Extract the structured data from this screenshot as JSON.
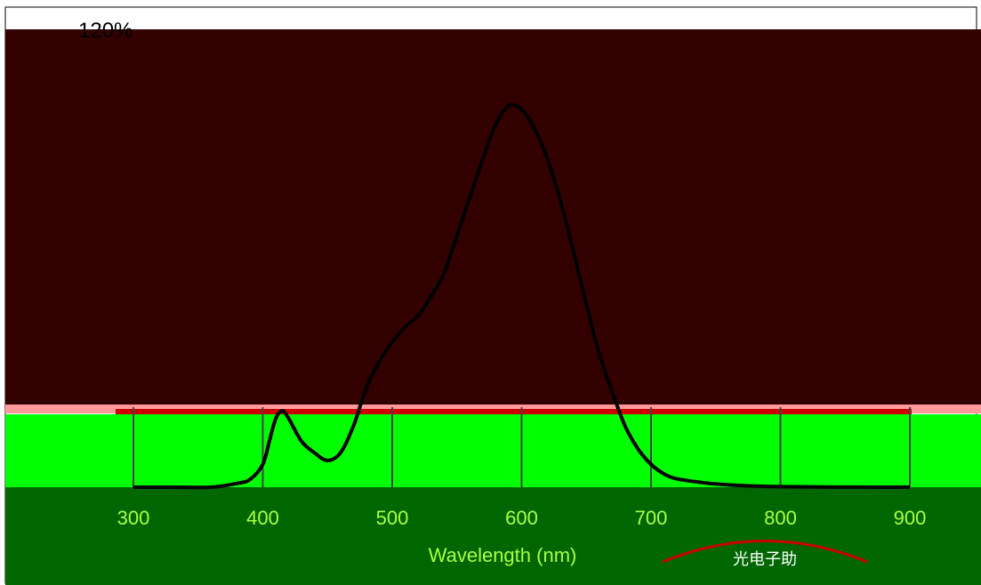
{
  "colors": {
    "plot_bg": "#330000",
    "band_green": "#00ff00",
    "band_dark_green": "#006600",
    "curve": "#000000",
    "strip_red": "#cc0000",
    "strip_pink": "#ff9999"
  },
  "chart_data": {
    "type": "line",
    "title": "",
    "xlabel": "Wavelength (nm)",
    "ylabel": "",
    "x_ticks": [
      "300",
      "400",
      "500",
      "600",
      "700",
      "800",
      "900"
    ],
    "y_ticks_visible": [
      "120%"
    ],
    "xlim": [
      300,
      900
    ],
    "ylim": [
      0,
      120
    ],
    "grid": true,
    "series": [
      {
        "x": [
          300,
          330,
          360,
          380,
          390,
          400,
          405,
          410,
          415,
          420,
          430,
          440,
          450,
          460,
          470,
          480,
          490,
          500,
          510,
          520,
          530,
          540,
          550,
          560,
          570,
          580,
          590,
          600,
          610,
          620,
          630,
          640,
          650,
          660,
          670,
          680,
          690,
          700,
          710,
          720,
          740,
          760,
          780,
          800,
          830,
          860,
          900
        ],
        "y": [
          0,
          0,
          0,
          1,
          2,
          6,
          12,
          18,
          20,
          18,
          12,
          9,
          7,
          9,
          16,
          26,
          33,
          38,
          42,
          45,
          50,
          56,
          66,
          76,
          86,
          95,
          100,
          99,
          94,
          86,
          75,
          62,
          48,
          35,
          25,
          16,
          10,
          6,
          3.5,
          2.2,
          1.2,
          0.6,
          0.3,
          0.15,
          0.05,
          0.02,
          0
        ]
      }
    ]
  },
  "stamp": {
    "text": "光电子助"
  }
}
